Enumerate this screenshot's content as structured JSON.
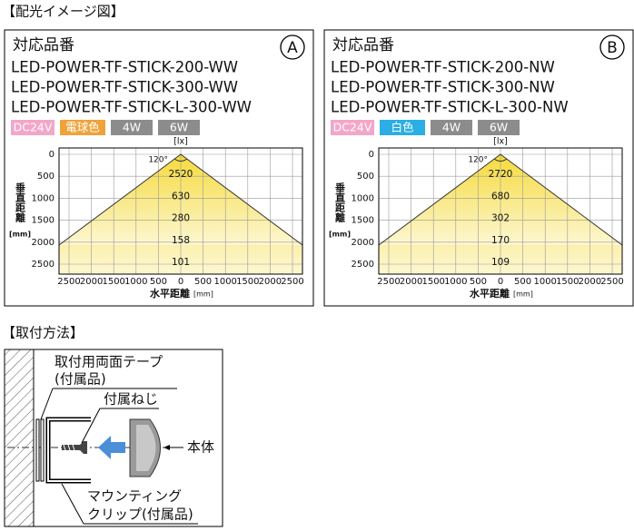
{
  "section_titles": [
    "【配光イメージ図】",
    "【取付方法】"
  ],
  "panels": [
    {
      "heading": "対応品番",
      "marker": "A",
      "models": [
        "LED-POWER-TF-STICK-200-WW",
        "LED-POWER-TF-STICK-300-WW",
        "LED-POWER-TF-STICK-L-300-WW"
      ],
      "badges": [
        "DC24V",
        "電球色",
        "4W",
        "6W"
      ],
      "badge_colors": [
        "#f2a7c9",
        "#eea33a",
        "#8c8c8c",
        "#8c8c8c"
      ],
      "lux_unit": "[lx]",
      "angle": "120°",
      "lux_values": [
        2520,
        630,
        280,
        158,
        101
      ],
      "y_axis_label": "垂直距離",
      "y_unit": "[mm]",
      "y_ticks": [
        0,
        500,
        1000,
        1500,
        2000,
        2500
      ],
      "x_ticks": [
        2500,
        2000,
        1500,
        1000,
        500,
        0,
        500,
        1000,
        1500,
        2000,
        2500
      ],
      "x_axis_label": "水平距離",
      "x_unit": "[mm]"
    },
    {
      "heading": "対応品番",
      "marker": "B",
      "models": [
        "LED-POWER-TF-STICK-200-NW",
        "LED-POWER-TF-STICK-300-NW",
        "LED-POWER-TF-STICK-L-300-NW"
      ],
      "badges": [
        "DC24V",
        "白色",
        "4W",
        "6W"
      ],
      "badge_colors": [
        "#f2a7c9",
        "#2aaee3",
        "#8c8c8c",
        "#8c8c8c"
      ],
      "lux_unit": "[lx]",
      "angle": "120°",
      "lux_values": [
        2720,
        680,
        302,
        170,
        109
      ],
      "y_axis_label": "垂直距離",
      "y_unit": "[mm]",
      "y_ticks": [
        0,
        500,
        1000,
        1500,
        2000,
        2500
      ],
      "x_ticks": [
        2500,
        2000,
        1500,
        1000,
        500,
        0,
        500,
        1000,
        1500,
        2000,
        2500
      ],
      "x_axis_label": "水平距離",
      "x_unit": "[mm]"
    }
  ],
  "diagram": {
    "tape_label": [
      "取付用両面テープ",
      "(付属品)"
    ],
    "screw_label": "付属ねじ",
    "body_label": "本体",
    "clip_label": [
      "マウンティング",
      "クリップ(付属品)"
    ]
  }
}
